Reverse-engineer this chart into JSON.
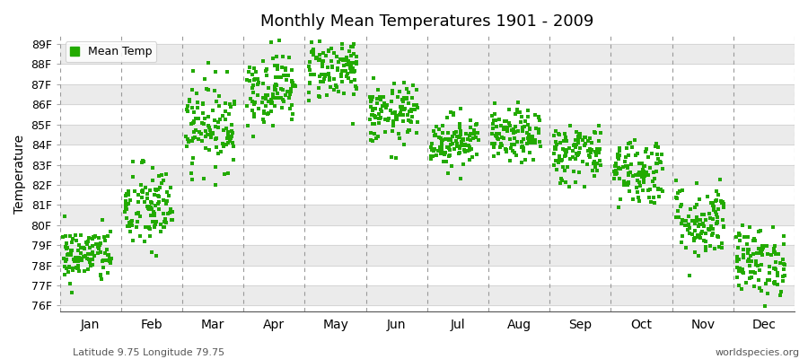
{
  "title": "Monthly Mean Temperatures 1901 - 2009",
  "ylabel": "Temperature",
  "xlabel_months": [
    "Jan",
    "Feb",
    "Mar",
    "Apr",
    "May",
    "Jun",
    "Jul",
    "Aug",
    "Sep",
    "Oct",
    "Nov",
    "Dec"
  ],
  "ytick_labels": [
    "76F",
    "77F",
    "78F",
    "79F",
    "80F",
    "81F",
    "82F",
    "83F",
    "84F",
    "85F",
    "86F",
    "87F",
    "88F",
    "89F"
  ],
  "ytick_values": [
    76,
    77,
    78,
    79,
    80,
    81,
    82,
    83,
    84,
    85,
    86,
    87,
    88,
    89
  ],
  "ylim": [
    75.7,
    89.4
  ],
  "legend_label": "Mean Temp",
  "marker_color": "#22aa00",
  "bg_color": "#ffffff",
  "plot_bg_color": "#ffffff",
  "band_color": "#ebebeb",
  "annotation_left": "Latitude 9.75 Longitude 79.75",
  "annotation_right": "worldspecies.org",
  "month_means": [
    78.5,
    80.8,
    85.0,
    86.8,
    87.8,
    85.5,
    84.2,
    84.4,
    83.6,
    82.7,
    80.2,
    78.2
  ],
  "month_stds": [
    0.7,
    1.1,
    1.1,
    0.9,
    0.8,
    0.75,
    0.65,
    0.65,
    0.75,
    0.85,
    0.95,
    0.85
  ],
  "n_years": 109
}
